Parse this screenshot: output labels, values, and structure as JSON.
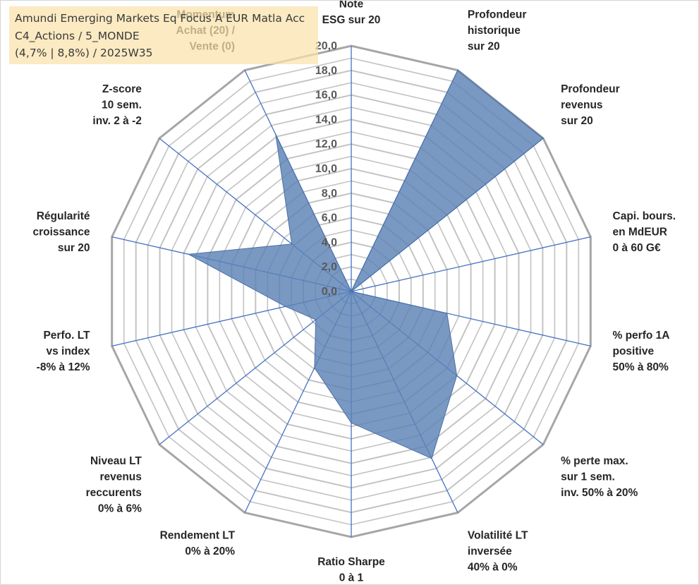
{
  "header": {
    "fund_name": "Amundi Emerging Markets Eq Focus A EUR Matla Acc",
    "category": "C4_Actions / 5_MONDE",
    "perf_week": "(4,7% | 8,8%) / 2025W35"
  },
  "colors": {
    "fill": "#5b83b6",
    "spoke": "#4472c4",
    "grid": "#c3c3c3",
    "ring": "#a6a6a6",
    "title_box": "#fae2aa"
  },
  "chart_data": {
    "type": "radar",
    "title": "Amundi Emerging Markets Eq Focus A EUR Matla Acc",
    "rmin": 0,
    "rmax": 20,
    "tick_step": 2,
    "tick_labels": [
      "0,0",
      "2,0",
      "4,0",
      "6,0",
      "8,0",
      "10,0",
      "12,0",
      "14,0",
      "16,0",
      "18,0",
      "20,0"
    ],
    "axes": [
      {
        "label": [
          "Note",
          "ESG sur 20"
        ],
        "value": 0
      },
      {
        "label": [
          "Profondeur",
          "historique",
          "sur 20"
        ],
        "value": 20
      },
      {
        "label": [
          "Profondeur",
          "revenus",
          "sur 20"
        ],
        "value": 20
      },
      {
        "label": [
          "Capi. bours.",
          "en MdEUR",
          "0 à 60 G€"
        ],
        "value": 0
      },
      {
        "label": [
          "% perfo 1A",
          "positive",
          "50% à 80%"
        ],
        "value": 8
      },
      {
        "label": [
          "% perte max.",
          "sur 1 sem.",
          "inv. 50% à 20%"
        ],
        "value": 11
      },
      {
        "label": [
          "Volatilité LT",
          "inversée",
          "40% à 0%"
        ],
        "value": 15.1
      },
      {
        "label": [
          "Ratio Sharpe",
          "0 à 1"
        ],
        "value": 10.7
      },
      {
        "label": [
          "Rendement LT",
          "0% à 20%"
        ],
        "value": 6.9
      },
      {
        "label": [
          "Niveau LT",
          "revenus",
          "reccurents",
          "0% à 6%"
        ],
        "value": 3.7
      },
      {
        "label": [
          "Perfo. LT",
          "vs index",
          "-8% à 12%"
        ],
        "value": 5.5
      },
      {
        "label": [
          "Régularité",
          "croissance",
          "sur 20"
        ],
        "value": 13.6
      },
      {
        "label": [
          "Z-score",
          "10 sem.",
          "inv. 2 à -2"
        ],
        "value": 6.2
      },
      {
        "label": [
          "Momentum",
          "Achat (20) /",
          "Vente (0)"
        ],
        "value": 14.2
      }
    ]
  }
}
